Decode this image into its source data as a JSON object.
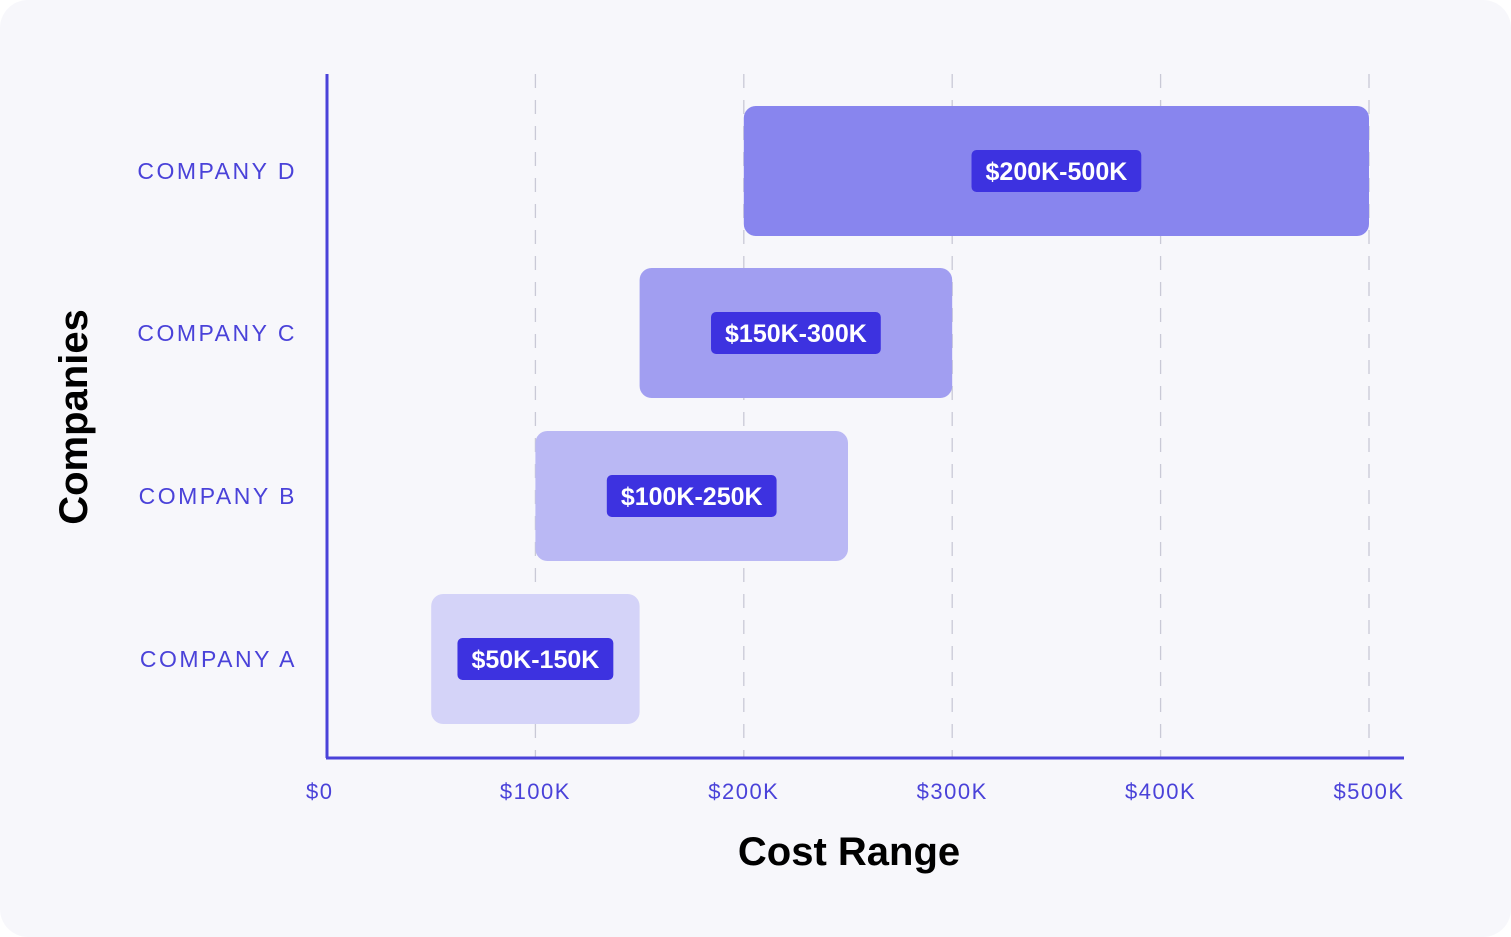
{
  "chart_data": {
    "type": "bar",
    "orientation": "horizontal-range",
    "title": "",
    "xlabel": "Cost Range",
    "ylabel": "Companies",
    "xlim": [
      0,
      500000
    ],
    "xticks": [
      {
        "value": 0,
        "label": "$0"
      },
      {
        "value": 100000,
        "label": "$100K"
      },
      {
        "value": 200000,
        "label": "$200K"
      },
      {
        "value": 300000,
        "label": "$300K"
      },
      {
        "value": 400000,
        "label": "$400K"
      },
      {
        "value": 500000,
        "label": "$500K"
      }
    ],
    "grid": "vertical dashed",
    "categories": [
      "COMPANY D",
      "COMPANY C",
      "COMPANY B",
      "COMPANY A"
    ],
    "ranges": [
      {
        "category": "COMPANY D",
        "start": 200000,
        "end": 500000,
        "label": "$200K-500K",
        "color": "#8885ee"
      },
      {
        "category": "COMPANY C",
        "start": 150000,
        "end": 300000,
        "label": "$150K-300K",
        "color": "#a19ef1"
      },
      {
        "category": "COMPANY B",
        "start": 100000,
        "end": 250000,
        "label": "$100K-250K",
        "color": "#bab8f4"
      },
      {
        "category": "COMPANY A",
        "start": 50000,
        "end": 150000,
        "label": "$50K-150K",
        "color": "#d4d3f8"
      }
    ],
    "colors": {
      "axis": "#4a42d9",
      "label_badge": "#3d32e0",
      "grid": "#c9c9d6"
    }
  }
}
